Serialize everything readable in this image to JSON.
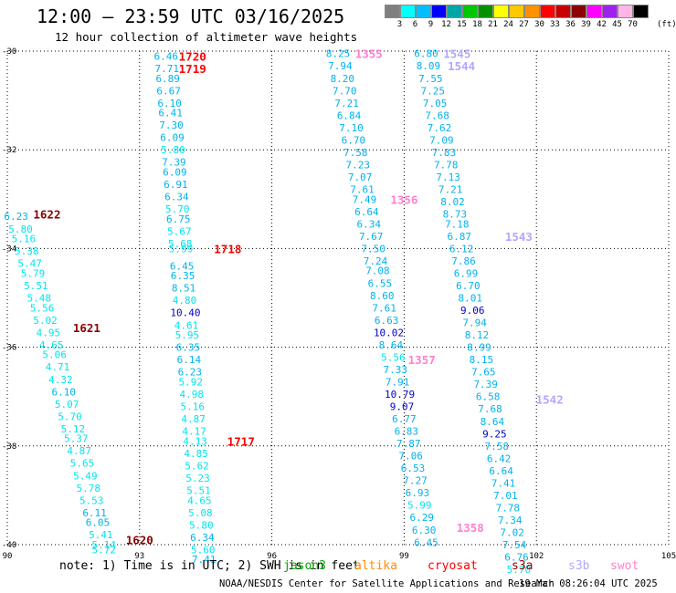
{
  "header": {
    "title": "12:00 – 23:59 UTC 03/16/2025",
    "subtitle": "12 hour collection of altimeter wave heights"
  },
  "colorbar": {
    "labels": [
      "3",
      "6",
      "9",
      "12",
      "15",
      "18",
      "21",
      "24",
      "27",
      "30",
      "33",
      "36",
      "39",
      "42",
      "45",
      "70"
    ],
    "unit": "(ft)",
    "colors": [
      "#7f7f7f",
      "#00ffff",
      "#00bfff",
      "#0000ff",
      "#00a6a6",
      "#00c800",
      "#009000",
      "#ffff00",
      "#ffc800",
      "#ff9000",
      "#ff0000",
      "#c80000",
      "#8b0000",
      "#ff00ff",
      "#a020f0",
      "#ffb6e6",
      "#000000"
    ]
  },
  "footer": {
    "note": "note: 1) Time is in UTC; 2) SWH is in feet",
    "legend": [
      {
        "name": "jason3",
        "color": "#00aa00"
      },
      {
        "name": "altika",
        "color": "#ff8c00"
      },
      {
        "name": "cryosat",
        "color": "#ff0000"
      },
      {
        "name": "s3a",
        "color": "#8b0000"
      },
      {
        "name": "s3b",
        "color": "#b0a8ff"
      },
      {
        "name": "swot",
        "color": "#ff80d0"
      }
    ],
    "credit": "NOAA/NESDIS Center for Satellite Applications and Research",
    "timestamp": "19 Mar 08:26:04 UTC 2025"
  },
  "chart_data": {
    "type": "scatter",
    "title": "12:00 – 23:59 UTC 03/16/2025",
    "subtitle": "12 hour collection of altimeter wave heights",
    "xlabel": "",
    "ylabel": "",
    "xlim": [
      90,
      105
    ],
    "ylim": [
      -40,
      -30
    ],
    "xticks": [
      90,
      93,
      96,
      99,
      102,
      105
    ],
    "yticks": [
      -30,
      -32,
      -34,
      -36,
      -38,
      -40
    ],
    "grid": true,
    "units": "ft",
    "tracks": [
      {
        "satellite": "s3a",
        "time_labels": [
          {
            "text": "1622",
            "x": 90.9,
            "y": -33.3
          },
          {
            "text": "1621",
            "x": 91.8,
            "y": -35.6
          },
          {
            "text": "1620",
            "x": 93.0,
            "y": -39.9
          }
        ],
        "points": [
          {
            "x": 90.2,
            "y": -33.35,
            "swh": 6.23
          },
          {
            "x": 90.3,
            "y": -33.6,
            "swh": 5.8
          },
          {
            "x": 90.37,
            "y": -33.8,
            "swh": 5.16
          },
          {
            "x": 90.44,
            "y": -34.05,
            "swh": 5.38
          },
          {
            "x": 90.51,
            "y": -34.3,
            "swh": 5.47
          },
          {
            "x": 90.58,
            "y": -34.5,
            "swh": 5.79
          },
          {
            "x": 90.65,
            "y": -34.75,
            "swh": 5.51
          },
          {
            "x": 90.72,
            "y": -35.0,
            "swh": 5.48
          },
          {
            "x": 90.79,
            "y": -35.2,
            "swh": 5.56
          },
          {
            "x": 90.86,
            "y": -35.45,
            "swh": 5.02
          },
          {
            "x": 90.93,
            "y": -35.7,
            "swh": 4.95
          },
          {
            "x": 91.0,
            "y": -35.95,
            "swh": 4.65
          },
          {
            "x": 91.07,
            "y": -36.15,
            "swh": 5.06
          },
          {
            "x": 91.14,
            "y": -36.4,
            "swh": 4.71
          },
          {
            "x": 91.21,
            "y": -36.65,
            "swh": 4.32
          },
          {
            "x": 91.28,
            "y": -36.9,
            "swh": 6.1
          },
          {
            "x": 91.35,
            "y": -37.15,
            "swh": 5.07
          },
          {
            "x": 91.42,
            "y": -37.4,
            "swh": 5.7
          },
          {
            "x": 91.49,
            "y": -37.65,
            "swh": 5.12
          },
          {
            "x": 91.56,
            "y": -37.85,
            "swh": 5.37
          },
          {
            "x": 91.63,
            "y": -38.1,
            "swh": 4.87
          },
          {
            "x": 91.7,
            "y": -38.35,
            "swh": 5.65
          },
          {
            "x": 91.77,
            "y": -38.6,
            "swh": 5.49
          },
          {
            "x": 91.84,
            "y": -38.85,
            "swh": 5.78
          },
          {
            "x": 91.91,
            "y": -39.1,
            "swh": 5.53
          },
          {
            "x": 91.98,
            "y": -39.35,
            "swh": 6.11
          },
          {
            "x": 92.05,
            "y": -39.55,
            "swh": 6.05
          },
          {
            "x": 92.12,
            "y": -39.8,
            "swh": 5.41
          },
          {
            "x": 92.19,
            "y": -40.0,
            "swh": 5.14
          },
          {
            "x": 92.19,
            "y": -40.1,
            "swh": 5.72
          }
        ]
      },
      {
        "satellite": "cryosat",
        "time_labels": [
          {
            "text": "1720",
            "x": 94.2,
            "y": -30.1
          },
          {
            "text": "1719",
            "x": 94.2,
            "y": -30.35
          },
          {
            "text": "1718",
            "x": 95.0,
            "y": -34.0
          },
          {
            "text": "1717",
            "x": 95.3,
            "y": -37.9
          }
        ],
        "points": [
          {
            "x": 93.6,
            "y": -30.1,
            "swh": 6.46
          },
          {
            "x": 93.62,
            "y": -30.35,
            "swh": 7.71
          },
          {
            "x": 93.64,
            "y": -30.55,
            "swh": 6.89
          },
          {
            "x": 93.66,
            "y": -30.8,
            "swh": 6.67
          },
          {
            "x": 93.68,
            "y": -31.05,
            "swh": 6.1
          },
          {
            "x": 93.7,
            "y": -31.25,
            "swh": 6.41
          },
          {
            "x": 93.72,
            "y": -31.5,
            "swh": 7.3
          },
          {
            "x": 93.74,
            "y": -31.75,
            "swh": 6.09
          },
          {
            "x": 93.76,
            "y": -32.0,
            "swh": 5.8
          },
          {
            "x": 93.78,
            "y": -32.25,
            "swh": 7.39
          },
          {
            "x": 93.8,
            "y": -32.45,
            "swh": 6.09
          },
          {
            "x": 93.82,
            "y": -32.7,
            "swh": 6.91
          },
          {
            "x": 93.84,
            "y": -32.95,
            "swh": 6.34
          },
          {
            "x": 93.86,
            "y": -33.2,
            "swh": 5.7
          },
          {
            "x": 93.88,
            "y": -33.4,
            "swh": 6.75
          },
          {
            "x": 93.9,
            "y": -33.65,
            "swh": 5.67
          },
          {
            "x": 93.92,
            "y": -33.9,
            "swh": 5.68
          },
          {
            "x": 93.94,
            "y": -34.0,
            "swh": 5.99
          },
          {
            "x": 93.96,
            "y": -34.35,
            "swh": 6.45
          },
          {
            "x": 93.98,
            "y": -34.55,
            "swh": 6.35
          },
          {
            "x": 94.0,
            "y": -34.8,
            "swh": 8.51
          },
          {
            "x": 94.02,
            "y": -35.05,
            "swh": 4.8
          },
          {
            "x": 94.04,
            "y": -35.3,
            "swh": 10.4
          },
          {
            "x": 94.06,
            "y": -35.55,
            "swh": 4.61
          },
          {
            "x": 94.08,
            "y": -35.75,
            "swh": 5.95
          },
          {
            "x": 94.1,
            "y": -36.0,
            "swh": 6.35
          },
          {
            "x": 94.12,
            "y": -36.25,
            "swh": 6.14
          },
          {
            "x": 94.14,
            "y": -36.5,
            "swh": 6.23
          },
          {
            "x": 94.16,
            "y": -36.7,
            "swh": 5.92
          },
          {
            "x": 94.18,
            "y": -36.95,
            "swh": 4.98
          },
          {
            "x": 94.2,
            "y": -37.2,
            "swh": 5.16
          },
          {
            "x": 94.22,
            "y": -37.45,
            "swh": 4.87
          },
          {
            "x": 94.24,
            "y": -37.7,
            "swh": 4.17
          },
          {
            "x": 94.26,
            "y": -37.9,
            "swh": 4.13
          },
          {
            "x": 94.28,
            "y": -38.15,
            "swh": 4.85
          },
          {
            "x": 94.3,
            "y": -38.4,
            "swh": 5.62
          },
          {
            "x": 94.32,
            "y": -38.65,
            "swh": 5.23
          },
          {
            "x": 94.34,
            "y": -38.9,
            "swh": 5.51
          },
          {
            "x": 94.36,
            "y": -39.1,
            "swh": 4.65
          },
          {
            "x": 94.38,
            "y": -39.35,
            "swh": 5.08
          },
          {
            "x": 94.4,
            "y": -39.6,
            "swh": 5.8
          },
          {
            "x": 94.42,
            "y": -39.85,
            "swh": 6.34
          },
          {
            "x": 94.44,
            "y": -40.1,
            "swh": 5.6
          },
          {
            "x": 94.46,
            "y": -40.3,
            "swh": 7.41
          }
        ]
      },
      {
        "satellite": "swot",
        "time_labels": [
          {
            "text": "1355",
            "x": 98.2,
            "y": -30.05
          },
          {
            "text": "1356",
            "x": 99.0,
            "y": -33.0
          },
          {
            "text": "1357",
            "x": 99.4,
            "y": -36.25
          },
          {
            "text": "1358",
            "x": 100.5,
            "y": -39.65
          }
        ],
        "points": [
          {
            "x": 97.5,
            "y": -30.05,
            "swh": 8.25
          },
          {
            "x": 97.55,
            "y": -30.3,
            "swh": 7.94
          },
          {
            "x": 97.6,
            "y": -30.55,
            "swh": 8.2
          },
          {
            "x": 97.65,
            "y": -30.8,
            "swh": 7.7
          },
          {
            "x": 97.7,
            "y": -31.05,
            "swh": 7.21
          },
          {
            "x": 97.75,
            "y": -31.3,
            "swh": 6.84
          },
          {
            "x": 97.8,
            "y": -31.55,
            "swh": 7.1
          },
          {
            "x": 97.85,
            "y": -31.8,
            "swh": 6.7
          },
          {
            "x": 97.9,
            "y": -32.05,
            "swh": 7.58
          },
          {
            "x": 97.95,
            "y": -32.3,
            "swh": 7.23
          },
          {
            "x": 98.0,
            "y": -32.55,
            "swh": 7.07
          },
          {
            "x": 98.05,
            "y": -32.8,
            "swh": 7.61
          },
          {
            "x": 98.1,
            "y": -33.0,
            "swh": 7.49
          },
          {
            "x": 98.15,
            "y": -33.25,
            "swh": 6.64
          },
          {
            "x": 98.2,
            "y": -33.5,
            "swh": 6.34
          },
          {
            "x": 98.25,
            "y": -33.75,
            "swh": 7.67
          },
          {
            "x": 98.3,
            "y": -34.0,
            "swh": 7.5
          },
          {
            "x": 98.35,
            "y": -34.25,
            "swh": 7.24
          },
          {
            "x": 98.4,
            "y": -34.45,
            "swh": 7.08
          },
          {
            "x": 98.45,
            "y": -34.7,
            "swh": 6.55
          },
          {
            "x": 98.5,
            "y": -34.95,
            "swh": 8.6
          },
          {
            "x": 98.55,
            "y": -35.2,
            "swh": 7.61
          },
          {
            "x": 98.6,
            "y": -35.45,
            "swh": 6.63
          },
          {
            "x": 98.65,
            "y": -35.7,
            "swh": 10.02
          },
          {
            "x": 98.7,
            "y": -35.95,
            "swh": 8.64
          },
          {
            "x": 98.75,
            "y": -36.2,
            "swh": 5.56
          },
          {
            "x": 98.8,
            "y": -36.45,
            "swh": 7.33
          },
          {
            "x": 98.85,
            "y": -36.7,
            "swh": 7.91
          },
          {
            "x": 98.9,
            "y": -36.95,
            "swh": 10.79
          },
          {
            "x": 98.95,
            "y": -37.2,
            "swh": 9.07
          },
          {
            "x": 99.0,
            "y": -37.45,
            "swh": 6.77
          },
          {
            "x": 99.05,
            "y": -37.7,
            "swh": 6.83
          },
          {
            "x": 99.1,
            "y": -37.95,
            "swh": 7.87
          },
          {
            "x": 99.15,
            "y": -38.2,
            "swh": 7.06
          },
          {
            "x": 99.2,
            "y": -38.45,
            "swh": 6.53
          },
          {
            "x": 99.25,
            "y": -38.7,
            "swh": 7.27
          },
          {
            "x": 99.3,
            "y": -38.95,
            "swh": 6.93
          },
          {
            "x": 99.35,
            "y": -39.2,
            "swh": 5.99
          },
          {
            "x": 99.4,
            "y": -39.45,
            "swh": 6.29
          },
          {
            "x": 99.45,
            "y": -39.7,
            "swh": 6.3
          },
          {
            "x": 99.5,
            "y": -39.95,
            "swh": 6.45
          }
        ]
      },
      {
        "satellite": "s3b",
        "time_labels": [
          {
            "text": "1545",
            "x": 100.2,
            "y": -30.05
          },
          {
            "text": "1544",
            "x": 100.3,
            "y": -30.3
          },
          {
            "text": "1543",
            "x": 101.6,
            "y": -33.75
          },
          {
            "text": "1542",
            "x": 102.3,
            "y": -37.05
          }
        ],
        "points": [
          {
            "x": 99.5,
            "y": -30.05,
            "swh": 6.8
          },
          {
            "x": 99.55,
            "y": -30.3,
            "swh": 8.09
          },
          {
            "x": 99.6,
            "y": -30.55,
            "swh": 7.55
          },
          {
            "x": 99.65,
            "y": -30.8,
            "swh": 7.25
          },
          {
            "x": 99.7,
            "y": -31.05,
            "swh": 7.05
          },
          {
            "x": 99.75,
            "y": -31.3,
            "swh": 7.68
          },
          {
            "x": 99.8,
            "y": -31.55,
            "swh": 7.62
          },
          {
            "x": 99.85,
            "y": -31.8,
            "swh": 7.09
          },
          {
            "x": 99.9,
            "y": -32.05,
            "swh": 7.83
          },
          {
            "x": 99.95,
            "y": -32.3,
            "swh": 7.78
          },
          {
            "x": 100.0,
            "y": -32.55,
            "swh": 7.13
          },
          {
            "x": 100.05,
            "y": -32.8,
            "swh": 7.21
          },
          {
            "x": 100.1,
            "y": -33.05,
            "swh": 8.02
          },
          {
            "x": 100.15,
            "y": -33.3,
            "swh": 8.73
          },
          {
            "x": 100.2,
            "y": -33.5,
            "swh": 7.18
          },
          {
            "x": 100.25,
            "y": -33.75,
            "swh": 6.87
          },
          {
            "x": 100.3,
            "y": -34.0,
            "swh": 6.12
          },
          {
            "x": 100.35,
            "y": -34.25,
            "swh": 7.86
          },
          {
            "x": 100.4,
            "y": -34.5,
            "swh": 6.99
          },
          {
            "x": 100.45,
            "y": -34.75,
            "swh": 6.7
          },
          {
            "x": 100.5,
            "y": -35.0,
            "swh": 8.01
          },
          {
            "x": 100.55,
            "y": -35.25,
            "swh": 9.06
          },
          {
            "x": 100.6,
            "y": -35.5,
            "swh": 7.94
          },
          {
            "x": 100.65,
            "y": -35.75,
            "swh": 8.12
          },
          {
            "x": 100.7,
            "y": -36.0,
            "swh": 8.99
          },
          {
            "x": 100.75,
            "y": -36.25,
            "swh": 8.15
          },
          {
            "x": 100.8,
            "y": -36.5,
            "swh": 7.65
          },
          {
            "x": 100.85,
            "y": -36.75,
            "swh": 7.39
          },
          {
            "x": 100.9,
            "y": -37.0,
            "swh": 6.58
          },
          {
            "x": 100.95,
            "y": -37.25,
            "swh": 7.68
          },
          {
            "x": 101.0,
            "y": -37.5,
            "swh": 8.64
          },
          {
            "x": 101.05,
            "y": -37.75,
            "swh": 9.25
          },
          {
            "x": 101.1,
            "y": -38.0,
            "swh": 7.58
          },
          {
            "x": 101.15,
            "y": -38.25,
            "swh": 6.42
          },
          {
            "x": 101.2,
            "y": -38.5,
            "swh": 6.64
          },
          {
            "x": 101.25,
            "y": -38.75,
            "swh": 7.41
          },
          {
            "x": 101.3,
            "y": -39.0,
            "swh": 7.01
          },
          {
            "x": 101.35,
            "y": -39.25,
            "swh": 7.78
          },
          {
            "x": 101.4,
            "y": -39.5,
            "swh": 7.34
          },
          {
            "x": 101.45,
            "y": -39.75,
            "swh": 7.02
          },
          {
            "x": 101.5,
            "y": -40.0,
            "swh": 7.54
          },
          {
            "x": 101.55,
            "y": -40.25,
            "swh": 6.76
          },
          {
            "x": 101.6,
            "y": -40.5,
            "swh": 5.7
          }
        ]
      }
    ]
  }
}
